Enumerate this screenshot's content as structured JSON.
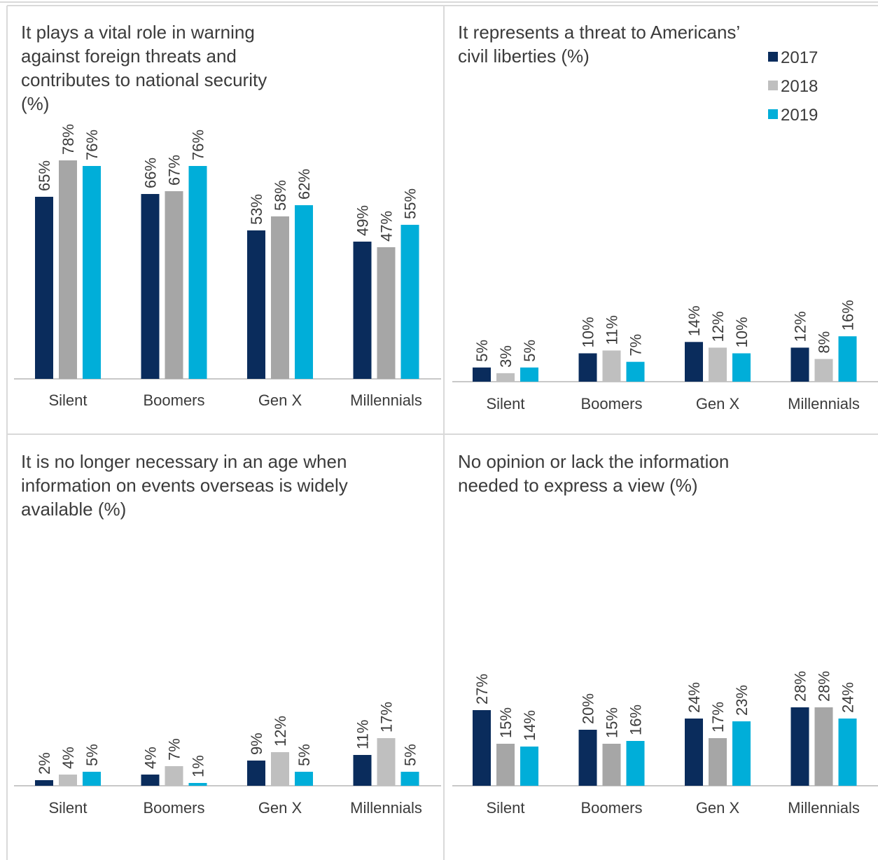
{
  "colors": {
    "2017": "#0a2c5c",
    "2018_left": "#a6a6a6",
    "2018_right": "#bfbfbf",
    "2019": "#00aed9",
    "text": "#3b3b3b",
    "axis": "#c8c8c8",
    "border": "#d9d9d9"
  },
  "legend": {
    "items": [
      {
        "label": "2017",
        "key": "2017"
      },
      {
        "label": "2018",
        "key": "2018_right"
      },
      {
        "label": "2019",
        "key": "2019"
      }
    ]
  },
  "chart_data": [
    {
      "type": "bar",
      "title": "It plays a vital role in warning against foreign threats and contributes to national security (%)",
      "categories": [
        "Silent",
        "Boomers",
        "Gen X",
        "Millennials"
      ],
      "series": [
        {
          "name": "2017",
          "values": [
            65,
            66,
            53,
            49
          ]
        },
        {
          "name": "2018",
          "values": [
            78,
            67,
            58,
            47
          ]
        },
        {
          "name": "2019",
          "values": [
            76,
            76,
            62,
            55
          ]
        }
      ],
      "value_labels": [
        [
          "65%",
          "78%",
          "76%"
        ],
        [
          "66%",
          "67%",
          "76%"
        ],
        [
          "53%",
          "58%",
          "62%"
        ],
        [
          "49%",
          "47%",
          "55%"
        ]
      ]
    },
    {
      "type": "bar",
      "title": "It represents a threat to Americans’ civil liberties (%)",
      "categories": [
        "Silent",
        "Boomers",
        "Gen X",
        "Millennials"
      ],
      "series": [
        {
          "name": "2017",
          "values": [
            5,
            10,
            14,
            12
          ]
        },
        {
          "name": "2018",
          "values": [
            3,
            11,
            12,
            8
          ]
        },
        {
          "name": "2019",
          "values": [
            5,
            7,
            10,
            16
          ]
        }
      ],
      "value_labels": [
        [
          "5%",
          "3%",
          "5%"
        ],
        [
          "10%",
          "11%",
          "7%"
        ],
        [
          "14%",
          "12%",
          "10%"
        ],
        [
          "12%",
          "8%",
          "16%"
        ]
      ]
    },
    {
      "type": "bar",
      "title": "It is no longer necessary in an age when information on events overseas is widely available (%)",
      "categories": [
        "Silent",
        "Boomers",
        "Gen X",
        "Millennials"
      ],
      "series": [
        {
          "name": "2017",
          "values": [
            2,
            4,
            9,
            11
          ]
        },
        {
          "name": "2018",
          "values": [
            4,
            7,
            12,
            17
          ]
        },
        {
          "name": "2019",
          "values": [
            5,
            1,
            5,
            5
          ]
        }
      ],
      "value_labels": [
        [
          "2%",
          "4%",
          "5%"
        ],
        [
          "4%",
          "7%",
          "1%"
        ],
        [
          "9%",
          "12%",
          "5%"
        ],
        [
          "11%",
          "17%",
          "5%"
        ]
      ]
    },
    {
      "type": "bar",
      "title": "No opinion or lack the information needed to express a view (%)",
      "categories": [
        "Silent",
        "Boomers",
        "Gen X",
        "Millennials"
      ],
      "series": [
        {
          "name": "2017",
          "values": [
            27,
            20,
            24,
            28
          ]
        },
        {
          "name": "2018",
          "values": [
            15,
            15,
            17,
            28
          ]
        },
        {
          "name": "2019",
          "values": [
            14,
            16,
            23,
            24
          ]
        }
      ],
      "value_labels": [
        [
          "27%",
          "15%",
          "14%"
        ],
        [
          "20%",
          "15%",
          "16%"
        ],
        [
          "24%",
          "17%",
          "23%"
        ],
        [
          "28%",
          "28%",
          "24%"
        ]
      ]
    }
  ]
}
